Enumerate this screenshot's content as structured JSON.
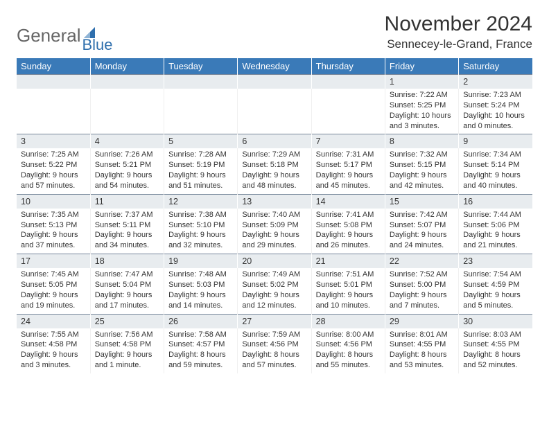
{
  "logo": {
    "word1": "General",
    "word2": "Blue",
    "icon_color": "#2f6fad"
  },
  "title": "November 2024",
  "location": "Sennecey-le-Grand, France",
  "colors": {
    "header_bg": "#3a7ab8",
    "header_text": "#ffffff",
    "daynum_bg": "#e8ecef",
    "daynum_border": "#76869a",
    "spacer_bg": "#eef1f4",
    "body_text": "#333333"
  },
  "daysOfWeek": [
    "Sunday",
    "Monday",
    "Tuesday",
    "Wednesday",
    "Thursday",
    "Friday",
    "Saturday"
  ],
  "weeks": [
    [
      null,
      null,
      null,
      null,
      null,
      {
        "n": "1",
        "sunrise": "7:22 AM",
        "sunset": "5:25 PM",
        "daylight": "10 hours and 3 minutes."
      },
      {
        "n": "2",
        "sunrise": "7:23 AM",
        "sunset": "5:24 PM",
        "daylight": "10 hours and 0 minutes."
      }
    ],
    [
      {
        "n": "3",
        "sunrise": "7:25 AM",
        "sunset": "5:22 PM",
        "daylight": "9 hours and 57 minutes."
      },
      {
        "n": "4",
        "sunrise": "7:26 AM",
        "sunset": "5:21 PM",
        "daylight": "9 hours and 54 minutes."
      },
      {
        "n": "5",
        "sunrise": "7:28 AM",
        "sunset": "5:19 PM",
        "daylight": "9 hours and 51 minutes."
      },
      {
        "n": "6",
        "sunrise": "7:29 AM",
        "sunset": "5:18 PM",
        "daylight": "9 hours and 48 minutes."
      },
      {
        "n": "7",
        "sunrise": "7:31 AM",
        "sunset": "5:17 PM",
        "daylight": "9 hours and 45 minutes."
      },
      {
        "n": "8",
        "sunrise": "7:32 AM",
        "sunset": "5:15 PM",
        "daylight": "9 hours and 42 minutes."
      },
      {
        "n": "9",
        "sunrise": "7:34 AM",
        "sunset": "5:14 PM",
        "daylight": "9 hours and 40 minutes."
      }
    ],
    [
      {
        "n": "10",
        "sunrise": "7:35 AM",
        "sunset": "5:13 PM",
        "daylight": "9 hours and 37 minutes."
      },
      {
        "n": "11",
        "sunrise": "7:37 AM",
        "sunset": "5:11 PM",
        "daylight": "9 hours and 34 minutes."
      },
      {
        "n": "12",
        "sunrise": "7:38 AM",
        "sunset": "5:10 PM",
        "daylight": "9 hours and 32 minutes."
      },
      {
        "n": "13",
        "sunrise": "7:40 AM",
        "sunset": "5:09 PM",
        "daylight": "9 hours and 29 minutes."
      },
      {
        "n": "14",
        "sunrise": "7:41 AM",
        "sunset": "5:08 PM",
        "daylight": "9 hours and 26 minutes."
      },
      {
        "n": "15",
        "sunrise": "7:42 AM",
        "sunset": "5:07 PM",
        "daylight": "9 hours and 24 minutes."
      },
      {
        "n": "16",
        "sunrise": "7:44 AM",
        "sunset": "5:06 PM",
        "daylight": "9 hours and 21 minutes."
      }
    ],
    [
      {
        "n": "17",
        "sunrise": "7:45 AM",
        "sunset": "5:05 PM",
        "daylight": "9 hours and 19 minutes."
      },
      {
        "n": "18",
        "sunrise": "7:47 AM",
        "sunset": "5:04 PM",
        "daylight": "9 hours and 17 minutes."
      },
      {
        "n": "19",
        "sunrise": "7:48 AM",
        "sunset": "5:03 PM",
        "daylight": "9 hours and 14 minutes."
      },
      {
        "n": "20",
        "sunrise": "7:49 AM",
        "sunset": "5:02 PM",
        "daylight": "9 hours and 12 minutes."
      },
      {
        "n": "21",
        "sunrise": "7:51 AM",
        "sunset": "5:01 PM",
        "daylight": "9 hours and 10 minutes."
      },
      {
        "n": "22",
        "sunrise": "7:52 AM",
        "sunset": "5:00 PM",
        "daylight": "9 hours and 7 minutes."
      },
      {
        "n": "23",
        "sunrise": "7:54 AM",
        "sunset": "4:59 PM",
        "daylight": "9 hours and 5 minutes."
      }
    ],
    [
      {
        "n": "24",
        "sunrise": "7:55 AM",
        "sunset": "4:58 PM",
        "daylight": "9 hours and 3 minutes."
      },
      {
        "n": "25",
        "sunrise": "7:56 AM",
        "sunset": "4:58 PM",
        "daylight": "9 hours and 1 minute."
      },
      {
        "n": "26",
        "sunrise": "7:58 AM",
        "sunset": "4:57 PM",
        "daylight": "8 hours and 59 minutes."
      },
      {
        "n": "27",
        "sunrise": "7:59 AM",
        "sunset": "4:56 PM",
        "daylight": "8 hours and 57 minutes."
      },
      {
        "n": "28",
        "sunrise": "8:00 AM",
        "sunset": "4:56 PM",
        "daylight": "8 hours and 55 minutes."
      },
      {
        "n": "29",
        "sunrise": "8:01 AM",
        "sunset": "4:55 PM",
        "daylight": "8 hours and 53 minutes."
      },
      {
        "n": "30",
        "sunrise": "8:03 AM",
        "sunset": "4:55 PM",
        "daylight": "8 hours and 52 minutes."
      }
    ]
  ],
  "labels": {
    "sunrise": "Sunrise:",
    "sunset": "Sunset:",
    "daylight": "Daylight:"
  }
}
